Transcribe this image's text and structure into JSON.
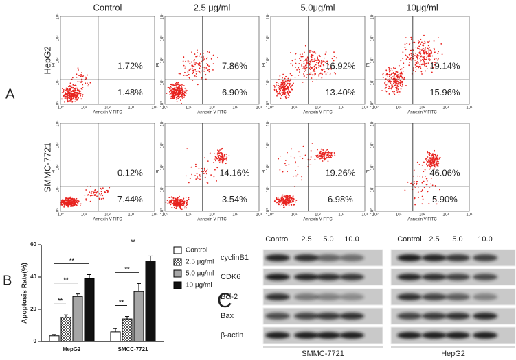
{
  "panel_labels": [
    "A",
    "B",
    "C"
  ],
  "flow": {
    "columns": [
      "Control",
      "2.5 μg/ml",
      "5.0μg/ml",
      "10μg/ml"
    ],
    "rows": [
      "HepG2",
      "SMMC-7721"
    ],
    "x_axis_label": "Annexin V FITC",
    "y_axis_label": "PI",
    "ticks": [
      "10⁰",
      "10¹",
      "10²",
      "10³",
      "10⁴"
    ],
    "quadrants": [
      [
        {
          "upper": "1.72%",
          "lower": "1.48%"
        },
        {
          "upper": "7.86%",
          "lower": "6.90%"
        },
        {
          "upper": "16.92%",
          "lower": "13.40%"
        },
        {
          "upper": "19.14%",
          "lower": "15.96%"
        }
      ],
      [
        {
          "upper": "0.12%",
          "lower": "7.44%"
        },
        {
          "upper": "14.16%",
          "lower": "3.54%"
        },
        {
          "upper": "19.26%",
          "lower": "6.98%"
        },
        {
          "upper": "46.06%",
          "lower": "5.90%"
        }
      ]
    ]
  },
  "chart_data": {
    "type": "bar",
    "y_axis_label": "Apoptosis Rate(%)",
    "categories": [
      "HepG2",
      "SMCC-7721"
    ],
    "series": [
      {
        "name": "Control",
        "color": "#ffffff",
        "values": [
          3.5,
          6
        ],
        "errors": [
          0.8,
          2
        ]
      },
      {
        "name": "2.5 μg/ml",
        "color": "#555555",
        "pattern": "checker",
        "values": [
          15,
          14
        ],
        "errors": [
          1.5,
          1.5
        ]
      },
      {
        "name": "5.0 μg/ml",
        "color": "#a6a6a6",
        "values": [
          28,
          31
        ],
        "errors": [
          1.5,
          5
        ]
      },
      {
        "name": "10 μg/ml",
        "color": "#111111",
        "values": [
          39,
          50
        ],
        "errors": [
          2.5,
          3
        ]
      }
    ],
    "annotations": [
      "**",
      "**",
      "**",
      "**",
      "**",
      "**"
    ],
    "ylim": [
      0,
      60
    ],
    "yticks": [
      0,
      20,
      40,
      60
    ]
  },
  "western": {
    "proteins": [
      "cyclinB1",
      "CDK6",
      "Bcl-2",
      "Bax",
      "β-actin"
    ],
    "blots": [
      {
        "title": "SMMC-7721",
        "lanes": [
          "Control",
          "2.5",
          "5.0",
          "10.0"
        ]
      },
      {
        "title": "HepG2",
        "lanes": [
          "Control",
          "2.5",
          "5.0",
          "10.0"
        ]
      }
    ]
  }
}
